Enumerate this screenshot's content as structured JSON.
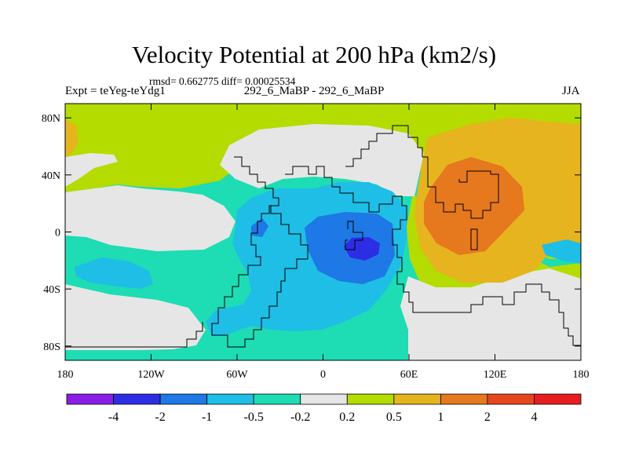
{
  "title": "Velocity Potential at 200 hPa (km2/s)",
  "stats": "rmsd= 0.662775 diff= 0.00025534",
  "experiment": "Expt = teYeg-teYdg1",
  "comparison": "292_6_MaBP - 292_6_MaBP",
  "season": "JJA",
  "y_ticks": [
    {
      "label": "80N",
      "lat": 80
    },
    {
      "label": "40N",
      "lat": 40
    },
    {
      "label": "0",
      "lat": 0
    },
    {
      "label": "40S",
      "lat": -40
    },
    {
      "label": "80S",
      "lat": -80
    }
  ],
  "x_ticks": [
    {
      "label": "180",
      "lon": -180
    },
    {
      "label": "120W",
      "lon": -120
    },
    {
      "label": "60W",
      "lon": -60
    },
    {
      "label": "0",
      "lon": 0
    },
    {
      "label": "60E",
      "lon": 60
    },
    {
      "label": "120E",
      "lon": 120
    },
    {
      "label": "180",
      "lon": 180
    }
  ],
  "colorbar": {
    "colors": [
      "#8a1ee6",
      "#2d2de6",
      "#1e78e6",
      "#1ebee6",
      "#1edcb4",
      "#e6e6e6",
      "#b4dc00",
      "#e6b41e",
      "#e6781e",
      "#e6461e",
      "#e61e1e"
    ],
    "labels": [
      "-4",
      "-2",
      "-1",
      "-0.5",
      "-0.2",
      "0.2",
      "0.5",
      "1",
      "2",
      "4"
    ]
  },
  "level_colors": {
    "neg4": "#2d2de6",
    "neg2": "#1e78e6",
    "neg1": "#1ebee6",
    "neg05": "#1edcb4",
    "zero": "#e6e6e6",
    "pos02": "#b4dc00",
    "pos05": "#e6b41e",
    "pos1": "#e6781e"
  }
}
